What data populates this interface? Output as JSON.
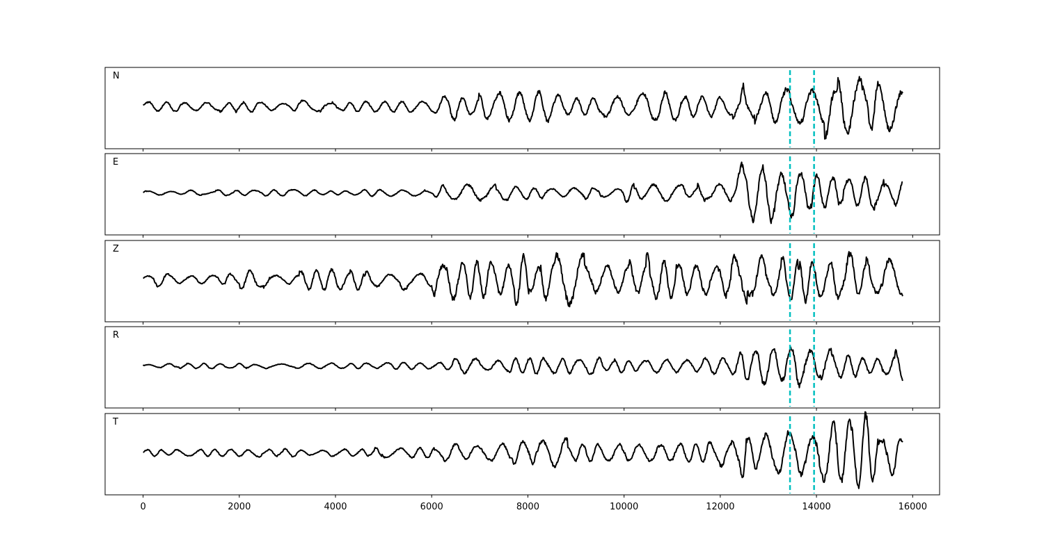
{
  "chart_data": {
    "type": "line",
    "title": "",
    "xlabel": "",
    "ylabel": "",
    "xlim": [
      -790,
      16560
    ],
    "x_ticks": [
      0,
      2000,
      4000,
      6000,
      8000,
      10000,
      12000,
      14000,
      16000
    ],
    "x_tick_labels": [
      "0",
      "2000",
      "4000",
      "6000",
      "8000",
      "10000",
      "12000",
      "14000",
      "16000"
    ],
    "n_samples": 15800,
    "grid": false,
    "legend": "none",
    "trace_color": "#000000",
    "marker_color": "#00bfbf",
    "vertical_markers": [
      13450,
      13950
    ],
    "panels": [
      {
        "label": "N",
        "approx_envelope": [
          {
            "x": 0,
            "amp": 0.12
          },
          {
            "x": 6000,
            "amp": 0.15
          },
          {
            "x": 6400,
            "amp": 0.35
          },
          {
            "x": 12400,
            "amp": 0.35
          },
          {
            "x": 12480,
            "amp": 0.85
          },
          {
            "x": 12700,
            "amp": 0.45
          },
          {
            "x": 13400,
            "amp": 0.4
          },
          {
            "x": 14000,
            "amp": 0.7
          },
          {
            "x": 15800,
            "amp": 0.7
          }
        ]
      },
      {
        "label": "E",
        "approx_envelope": [
          {
            "x": 0,
            "amp": 0.06
          },
          {
            "x": 6000,
            "amp": 0.08
          },
          {
            "x": 6100,
            "amp": 0.2
          },
          {
            "x": 12300,
            "amp": 0.2
          },
          {
            "x": 12450,
            "amp": 0.75
          },
          {
            "x": 13300,
            "amp": 0.6
          },
          {
            "x": 13700,
            "amp": 0.85
          },
          {
            "x": 14100,
            "amp": 0.45
          },
          {
            "x": 15800,
            "amp": 0.35
          }
        ]
      },
      {
        "label": "Z",
        "approx_envelope": [
          {
            "x": 0,
            "amp": 0.18
          },
          {
            "x": 5100,
            "amp": 0.25
          },
          {
            "x": 6000,
            "amp": 0.3
          },
          {
            "x": 6050,
            "amp": 0.95
          },
          {
            "x": 6300,
            "amp": 0.55
          },
          {
            "x": 8000,
            "amp": 0.6
          },
          {
            "x": 12000,
            "amp": 0.55
          },
          {
            "x": 15800,
            "amp": 0.6
          }
        ]
      },
      {
        "label": "R",
        "approx_envelope": [
          {
            "x": 0,
            "amp": 0.06
          },
          {
            "x": 6000,
            "amp": 0.08
          },
          {
            "x": 6100,
            "amp": 0.18
          },
          {
            "x": 12300,
            "amp": 0.2
          },
          {
            "x": 12450,
            "amp": 0.8
          },
          {
            "x": 13300,
            "amp": 0.6
          },
          {
            "x": 13650,
            "amp": 0.9
          },
          {
            "x": 14100,
            "amp": 0.45
          },
          {
            "x": 15800,
            "amp": 0.35
          }
        ]
      },
      {
        "label": "T",
        "approx_envelope": [
          {
            "x": 0,
            "amp": 0.08
          },
          {
            "x": 6000,
            "amp": 0.12
          },
          {
            "x": 6300,
            "amp": 0.3
          },
          {
            "x": 12400,
            "amp": 0.3
          },
          {
            "x": 12480,
            "amp": 0.9
          },
          {
            "x": 12700,
            "amp": 0.4
          },
          {
            "x": 14000,
            "amp": 0.55
          },
          {
            "x": 15050,
            "amp": 0.9
          },
          {
            "x": 15200,
            "amp": 0.55
          },
          {
            "x": 15800,
            "amp": 0.55
          }
        ]
      }
    ]
  }
}
